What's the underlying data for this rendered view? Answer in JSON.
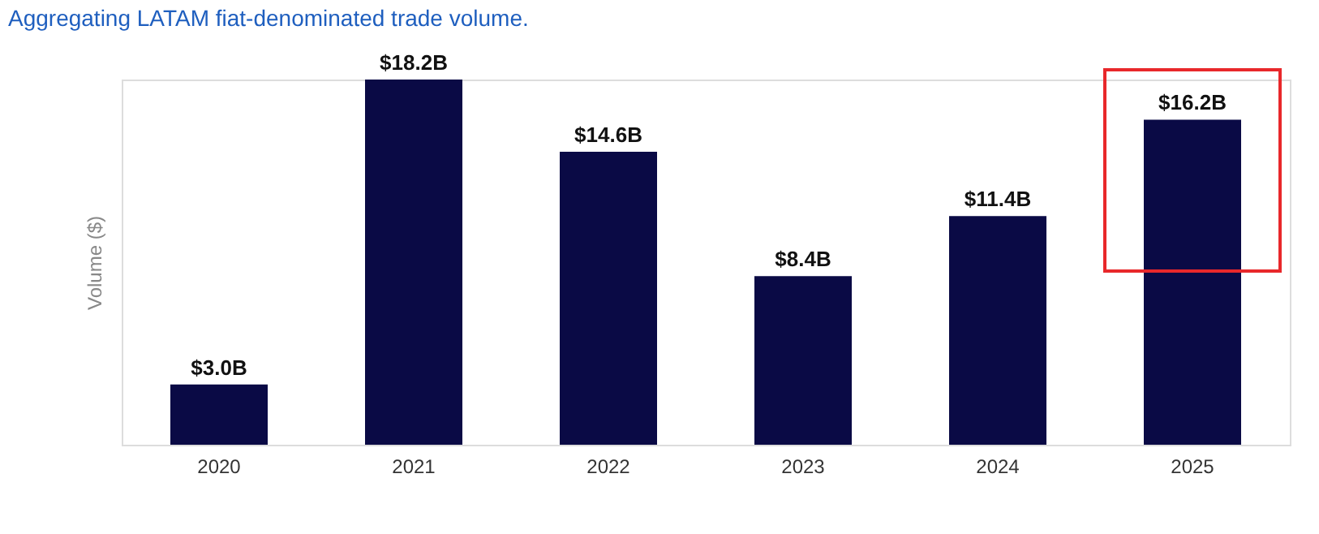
{
  "chart_data": {
    "type": "bar",
    "title": "Aggregating LATAM fiat-denominated trade volume.",
    "ylabel": "Volume ($)",
    "categories": [
      "2020",
      "2021",
      "2022",
      "2023",
      "2024",
      "2025"
    ],
    "values": [
      3.0,
      18.2,
      14.6,
      8.4,
      11.4,
      16.2
    ],
    "value_labels": [
      "$3.0B",
      "$18.2B",
      "$14.6B",
      "$8.4B",
      "$11.4B",
      "$16.2B"
    ],
    "color": "#0a0a45",
    "tick_labels": "x",
    "grid": false
  }
}
